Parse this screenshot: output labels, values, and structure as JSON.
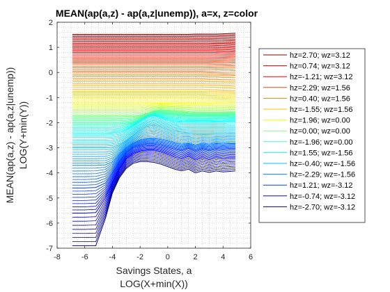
{
  "chart_data": {
    "type": "line",
    "title": "MEAN(ap(a,z) - ap(a,z|unemp)), a=x, z=color",
    "xlabel": [
      "Savings States, a",
      "LOG(X+min(X))"
    ],
    "ylabel": [
      "MEAN(ap(a,z) - ap(a,z|unemp))",
      "LOG(Y+min(Y))"
    ],
    "xlim": [
      -8,
      6
    ],
    "ylim": [
      -7,
      2
    ],
    "xticks": [
      -8,
      -6,
      -4,
      -2,
      0,
      2,
      4,
      6
    ],
    "yticks": [
      -7,
      -6,
      -5,
      -4,
      -3,
      -2,
      -1,
      0,
      1,
      2
    ],
    "grid": "minor-dotted",
    "legend_position": "right",
    "x": [
      -6.9,
      -6.0,
      -5.2,
      -4.5,
      -4.0,
      -3.5,
      -3.0,
      -2.5,
      -2.0,
      -1.5,
      -1.0,
      -0.5,
      0.0,
      0.5,
      1.0,
      1.5,
      2.0,
      2.5,
      3.0,
      3.5,
      4.0,
      4.5,
      4.9
    ],
    "series": [
      {
        "name": "hz=2.70; wz=3.12",
        "color": "#800000",
        "values": [
          1.52,
          1.52,
          1.52,
          1.52,
          1.52,
          1.52,
          1.52,
          1.52,
          1.52,
          1.52,
          1.52,
          1.52,
          1.52,
          1.52,
          1.52,
          1.52,
          1.53,
          1.53,
          1.53,
          1.53,
          1.54,
          1.55,
          1.56
        ]
      },
      {
        "name": "hz=0.74; wz=3.12",
        "color": "#bf0000",
        "values": [
          1.15,
          1.15,
          1.15,
          1.15,
          1.15,
          1.15,
          1.15,
          1.15,
          1.15,
          1.15,
          1.15,
          1.15,
          1.15,
          1.15,
          1.15,
          1.15,
          1.15,
          1.15,
          1.15,
          1.16,
          1.16,
          1.17,
          1.18
        ]
      },
      {
        "name": "hz=-1.21; wz=3.12",
        "color": "#ff0000",
        "values": [
          0.8,
          0.8,
          0.8,
          0.8,
          0.8,
          0.8,
          0.8,
          0.8,
          0.8,
          0.8,
          0.8,
          0.8,
          0.8,
          0.8,
          0.8,
          0.8,
          0.8,
          0.8,
          0.8,
          0.8,
          0.81,
          0.82,
          0.83
        ]
      },
      {
        "name": "hz=2.29; wz=1.56",
        "color": "#ff4000",
        "values": [
          0.38,
          0.38,
          0.38,
          0.38,
          0.38,
          0.38,
          0.38,
          0.38,
          0.38,
          0.38,
          0.38,
          0.38,
          0.38,
          0.38,
          0.38,
          0.38,
          0.38,
          0.38,
          0.38,
          0.39,
          0.39,
          0.4,
          0.41
        ]
      },
      {
        "name": "hz=0.40; wz=1.56",
        "color": "#ff8000",
        "values": [
          -0.15,
          -0.15,
          -0.15,
          -0.15,
          -0.15,
          -0.15,
          -0.15,
          -0.15,
          -0.15,
          -0.15,
          -0.15,
          -0.15,
          -0.15,
          -0.15,
          -0.15,
          -0.15,
          -0.15,
          -0.15,
          -0.14,
          -0.14,
          -0.13,
          -0.13,
          -0.12
        ]
      },
      {
        "name": "hz=-1.55; wz=1.56",
        "color": "#ffbf00",
        "values": [
          -0.75,
          -0.75,
          -0.75,
          -0.75,
          -0.75,
          -0.75,
          -0.75,
          -0.75,
          -0.75,
          -0.75,
          -0.75,
          -0.75,
          -0.75,
          -0.75,
          -0.75,
          -0.75,
          -0.75,
          -0.75,
          -0.74,
          -0.74,
          -0.73,
          -0.73,
          -0.72
        ]
      },
      {
        "name": "hz=1.96; wz=0.00",
        "color": "#ffff00",
        "values": [
          -1.22,
          -1.22,
          -1.22,
          -1.22,
          -1.22,
          -1.22,
          -1.22,
          -1.22,
          -1.22,
          -1.22,
          -1.22,
          -1.22,
          -1.22,
          -1.22,
          -1.22,
          -1.22,
          -1.22,
          -1.22,
          -1.22,
          -1.21,
          -1.21,
          -1.2,
          -1.2
        ]
      },
      {
        "name": "hz=0.00; wz=0.00",
        "color": "#80ff80",
        "values": [
          -1.72,
          -1.72,
          -1.72,
          -1.72,
          -1.72,
          -1.72,
          -1.72,
          -1.72,
          -1.7,
          -1.62,
          -1.52,
          -1.48,
          -1.5,
          -1.52,
          -1.54,
          -1.56,
          -1.58,
          -1.58,
          -1.58,
          -1.58,
          -1.58,
          -1.57,
          -1.57
        ]
      },
      {
        "name": "hz=-1.96; wz=0.00",
        "color": "#40ffbf",
        "values": [
          -2.05,
          -2.05,
          -2.05,
          -2.05,
          -2.05,
          -2.04,
          -2.02,
          -1.98,
          -1.88,
          -1.72,
          -1.6,
          -1.62,
          -1.66,
          -1.7,
          -1.72,
          -1.74,
          -1.74,
          -1.74,
          -1.74,
          -1.74,
          -1.73,
          -1.72,
          -1.72
        ]
      },
      {
        "name": "hz=1.55; wz=-1.56",
        "color": "#00ffff",
        "values": [
          -2.45,
          -2.45,
          -2.45,
          -2.45,
          -2.44,
          -2.4,
          -2.3,
          -2.15,
          -1.95,
          -1.78,
          -1.72,
          -1.8,
          -1.9,
          -1.96,
          -1.98,
          -1.98,
          -1.98,
          -1.98,
          -1.98,
          -1.97,
          -1.97,
          -1.96,
          -1.96
        ]
      },
      {
        "name": "hz=-0.40; wz=-1.56",
        "color": "#00bfff",
        "values": [
          -3.0,
          -3.0,
          -3.0,
          -3.0,
          -2.98,
          -2.88,
          -2.7,
          -2.5,
          -2.3,
          -2.15,
          -2.1,
          -2.18,
          -2.28,
          -2.34,
          -2.38,
          -2.4,
          -2.42,
          -2.42,
          -2.42,
          -2.41,
          -2.41,
          -2.4,
          -2.4
        ]
      },
      {
        "name": "hz=-2.29; wz=-1.56",
        "color": "#0080ff",
        "values": [
          -3.7,
          -3.7,
          -3.7,
          -3.68,
          -3.55,
          -3.25,
          -2.98,
          -2.8,
          -2.68,
          -2.62,
          -2.6,
          -2.64,
          -2.7,
          -2.78,
          -2.85,
          -2.8,
          -2.88,
          -2.82,
          -2.85,
          -2.8,
          -2.82,
          -2.8,
          -2.8
        ]
      },
      {
        "name": "hz=1.21; wz=-3.12",
        "color": "#0040ff",
        "values": [
          -4.6,
          -4.6,
          -4.58,
          -4.4,
          -4.0,
          -3.55,
          -3.2,
          -3.0,
          -2.9,
          -2.85,
          -2.85,
          -2.9,
          -2.98,
          -3.05,
          -3.12,
          -3.02,
          -3.15,
          -3.05,
          -3.12,
          -3.05,
          -3.08,
          -3.05,
          -3.05
        ]
      },
      {
        "name": "hz=-0.74; wz=-3.12",
        "color": "#0000ff",
        "values": [
          -5.6,
          -5.6,
          -5.58,
          -5.0,
          -4.4,
          -3.85,
          -3.45,
          -3.25,
          -3.15,
          -3.12,
          -3.12,
          -3.18,
          -3.28,
          -3.38,
          -3.45,
          -3.35,
          -3.5,
          -3.4,
          -3.48,
          -3.4,
          -3.45,
          -3.42,
          -3.42
        ]
      },
      {
        "name": "hz=-2.70; wz=-3.12",
        "color": "#000080",
        "values": [
          -6.9,
          -6.9,
          -6.9,
          -5.8,
          -4.8,
          -4.2,
          -3.82,
          -3.62,
          -3.55,
          -3.55,
          -3.58,
          -3.65,
          -3.75,
          -3.85,
          -3.92,
          -3.85,
          -4.0,
          -3.92,
          -3.98,
          -3.92,
          -3.96,
          -3.94,
          -3.92
        ]
      }
    ]
  }
}
